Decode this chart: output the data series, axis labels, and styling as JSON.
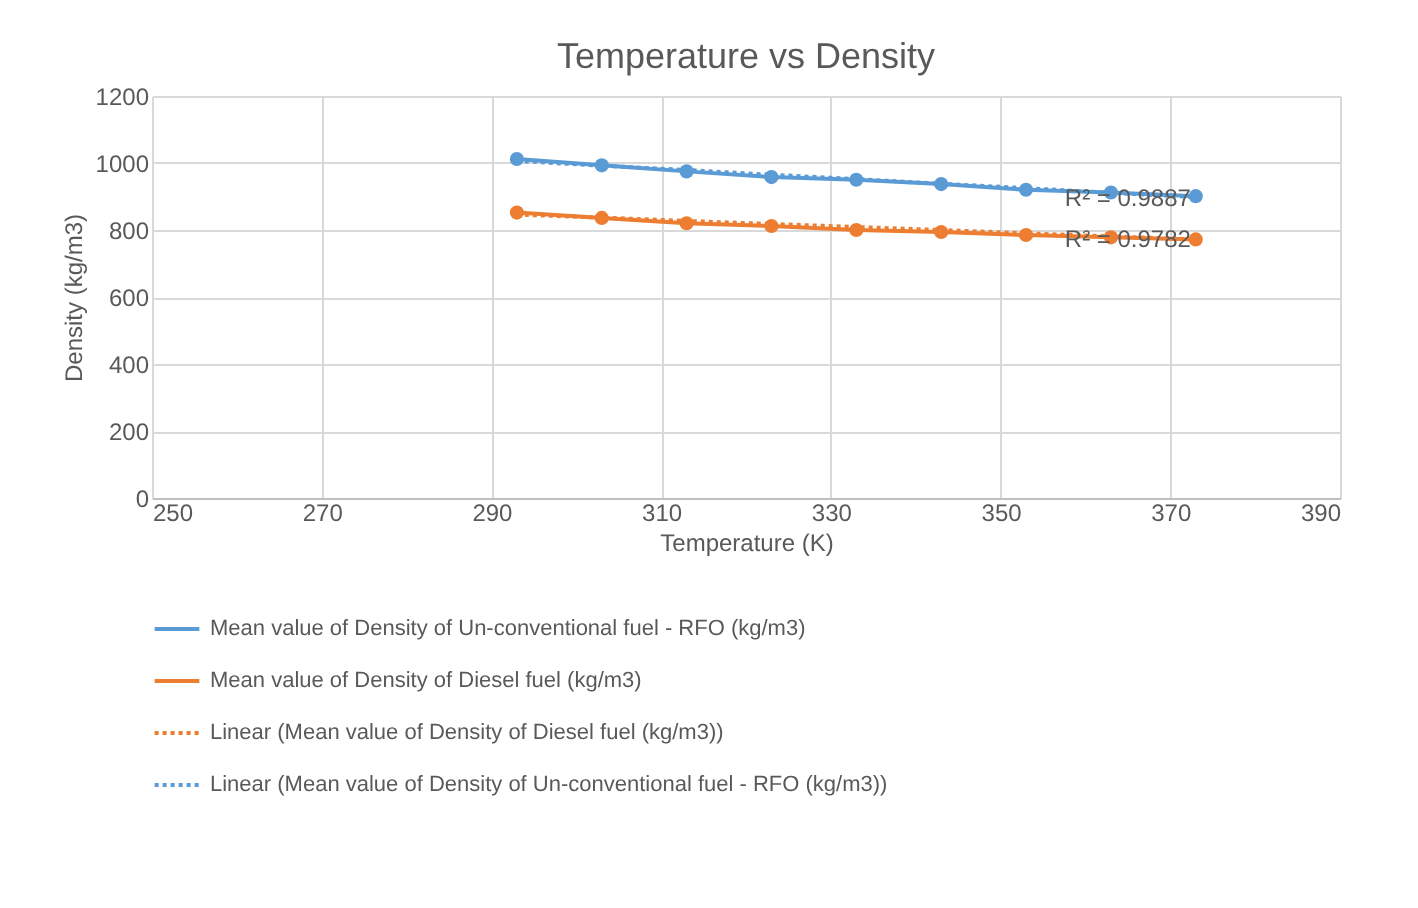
{
  "chart_data": {
    "type": "line",
    "title": "Temperature vs Density",
    "xlabel": "Temperature (K)",
    "ylabel": "Density (kg/m3)",
    "x": [
      293,
      303,
      313,
      323,
      333,
      343,
      353,
      363,
      373
    ],
    "series": [
      {
        "name": "Mean value of Density of Un-conventional fuel - RFO  (kg/m3)",
        "color": "#5b9bd5",
        "marker": "circle",
        "line_style": "solid",
        "values": [
          1012,
          993,
          975,
          958,
          950,
          937,
          920,
          912,
          901
        ]
      },
      {
        "name": "Mean value of Density of Diesel fuel (kg/m3)",
        "color": "#ed7d31",
        "marker": "circle",
        "line_style": "solid",
        "values": [
          852,
          836,
          820,
          812,
          800,
          794,
          785,
          778,
          772
        ]
      },
      {
        "name": "Linear (Mean value of Density of Diesel fuel (kg/m3))",
        "color": "#ed7d31",
        "marker": "none",
        "line_style": "dotted",
        "values": [
          846,
          837,
          827,
          818,
          809,
          800,
          790,
          781,
          772
        ]
      },
      {
        "name": "Linear (Mean value of Density of Un-conventional fuel - RFO  (kg/m3))",
        "color": "#5b9bd5",
        "marker": "none",
        "line_style": "dotted",
        "values": [
          1006,
          992,
          979,
          965,
          952,
          938,
          925,
          911,
          898
        ]
      }
    ],
    "xlim": [
      250,
      390
    ],
    "xticks": [
      250,
      270,
      290,
      310,
      330,
      350,
      370,
      390
    ],
    "ylim": [
      0,
      1200
    ],
    "yticks": [
      0,
      200,
      400,
      600,
      800,
      1000,
      1200
    ],
    "grid": true,
    "legend": "bottom",
    "annotations": [
      {
        "text": "R² = 0.9887",
        "x": 365,
        "y": 895
      },
      {
        "text": "R² = 0.9782",
        "x": 365,
        "y": 772
      }
    ]
  }
}
